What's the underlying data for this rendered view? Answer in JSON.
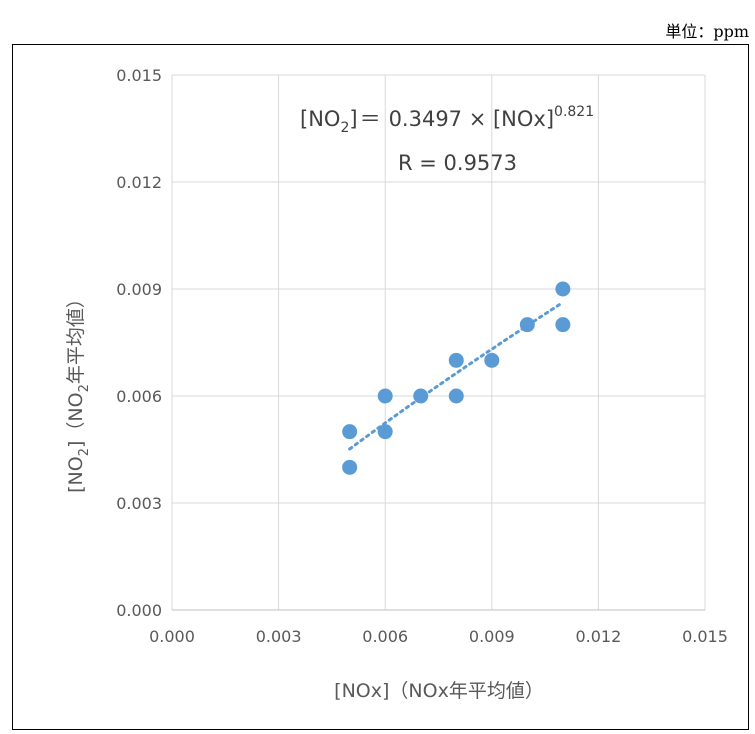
{
  "unit_label": "単位：ppm",
  "chart_data": {
    "type": "scatter",
    "xlim": [
      0,
      0.015
    ],
    "ylim": [
      0,
      0.015
    ],
    "x_ticks": [
      "0.000",
      "0.003",
      "0.006",
      "0.009",
      "0.012",
      "0.015"
    ],
    "y_ticks": [
      "0.000",
      "0.003",
      "0.006",
      "0.009",
      "0.012",
      "0.015"
    ],
    "xlabel": "[NOx]（NOx年平均値）",
    "ylabel": {
      "pre": "[NO",
      "sub": "2",
      "post": "]（NO",
      "sub2": "2",
      "post2": "年平均値）"
    },
    "grid": true,
    "marker_color": "#5B9BD5",
    "trend_color": "#5B9BD5",
    "points": [
      {
        "x": 0.005,
        "y": 0.004
      },
      {
        "x": 0.005,
        "y": 0.005
      },
      {
        "x": 0.006,
        "y": 0.005
      },
      {
        "x": 0.006,
        "y": 0.006
      },
      {
        "x": 0.007,
        "y": 0.006
      },
      {
        "x": 0.008,
        "y": 0.006
      },
      {
        "x": 0.008,
        "y": 0.007
      },
      {
        "x": 0.009,
        "y": 0.007
      },
      {
        "x": 0.01,
        "y": 0.008
      },
      {
        "x": 0.011,
        "y": 0.008
      },
      {
        "x": 0.011,
        "y": 0.009
      }
    ],
    "trendline": {
      "type": "power",
      "coef": 0.3497,
      "exp": 0.821,
      "x_range": [
        0.005,
        0.011
      ]
    },
    "annotation": {
      "eq_lhs_pre": "[NO",
      "eq_lhs_sub": "2",
      "eq_lhs_post": "]",
      "eq_eq": "＝",
      "eq_rhs": "0.3497 × [NOx]",
      "eq_exp": "0.821",
      "r_text": "R = 0.9573"
    }
  }
}
